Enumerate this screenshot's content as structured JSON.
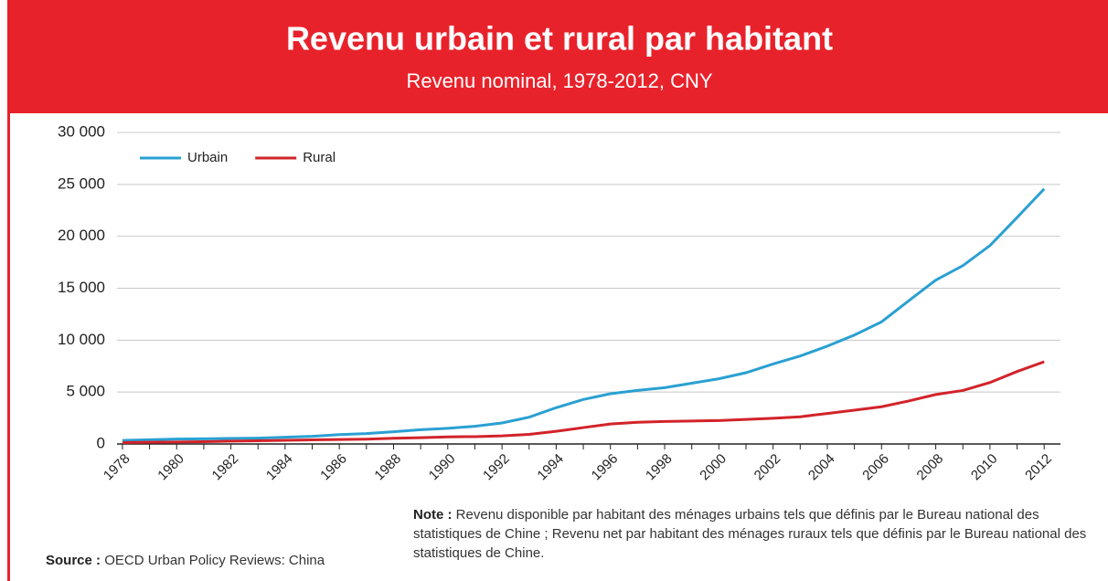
{
  "chart_data": {
    "type": "line",
    "title": "Revenu urbain et rural par habitant",
    "subtitle": "Revenu nominal, 1978-2012, CNY",
    "x": [
      1978,
      1979,
      1980,
      1981,
      1982,
      1983,
      1984,
      1985,
      1986,
      1987,
      1988,
      1989,
      1990,
      1991,
      1992,
      1993,
      1994,
      1995,
      1996,
      1997,
      1998,
      1999,
      2000,
      2001,
      2002,
      2003,
      2004,
      2005,
      2006,
      2007,
      2008,
      2009,
      2010,
      2011,
      2012
    ],
    "series": [
      {
        "name": "Urbain",
        "color": "#2aa0d2",
        "values": [
          343,
          405,
          478,
          500,
          535,
          565,
          652,
          739,
          900,
          1002,
          1180,
          1374,
          1510,
          1701,
          2027,
          2577,
          3496,
          4283,
          4839,
          5160,
          5425,
          5854,
          6280,
          6860,
          7703,
          8472,
          9422,
          10493,
          11759,
          13786,
          15781,
          17175,
          19109,
          21810,
          24565
        ]
      },
      {
        "name": "Rural",
        "color": "#d2232a",
        "values": [
          134,
          160,
          191,
          223,
          270,
          310,
          355,
          398,
          424,
          463,
          545,
          602,
          686,
          709,
          784,
          922,
          1221,
          1578,
          1926,
          2090,
          2162,
          2210,
          2253,
          2366,
          2476,
          2622,
          2936,
          3255,
          3587,
          4140,
          4761,
          5153,
          5919,
          6977,
          7917
        ]
      }
    ],
    "xlim": [
      1977.8,
      2012.6
    ],
    "xticks": [
      1978,
      1980,
      1982,
      1984,
      1986,
      1988,
      1990,
      1992,
      1994,
      1996,
      1998,
      2000,
      2002,
      2004,
      2006,
      2008,
      2010,
      2012
    ],
    "ylim": [
      0,
      30000
    ],
    "yticks": [
      0,
      {
        "value": 5000,
        "label": "5 000"
      },
      {
        "value": 10000,
        "label": "10 000"
      },
      {
        "value": 15000,
        "label": "15 000"
      },
      {
        "value": 20000,
        "label": "20 000"
      },
      {
        "value": 25000,
        "label": "25 000"
      },
      {
        "value": 30000,
        "label": "30 000"
      }
    ],
    "grid": true,
    "legend": "upper left",
    "source": {
      "label": "Source :",
      "text": "OECD Urban Policy Reviews: China"
    },
    "note": {
      "label": "Note :",
      "text": "Revenu disponible par habitant des ménages urbains tels que définis par le Bureau national des statistiques de Chine ; Revenu net par habitant des ménages ruraux tels que définis par le Bureau national des statistiques de Chine."
    }
  }
}
